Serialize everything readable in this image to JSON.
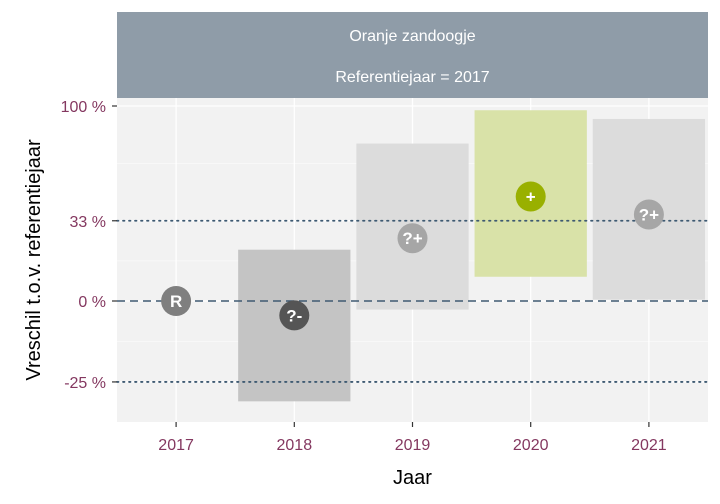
{
  "chart_data": {
    "type": "scatter",
    "title": "Oranje zandoogje",
    "subtitle": "Referentiejaar = 2017",
    "xlabel": "Jaar",
    "ylabel": "Vreschil t.o.v. referentiejaar",
    "categories": [
      "2017",
      "2018",
      "2019",
      "2020",
      "2021"
    ],
    "y_scale": "log-ratio",
    "y_ticks": [
      {
        "label": "-25 %",
        "value": -25
      },
      {
        "label": "0 %",
        "value": 0
      },
      {
        "label": "33 %",
        "value": 33
      },
      {
        "label": "100 %",
        "value": 100
      }
    ],
    "reference_lines": [
      {
        "value": 0,
        "style": "dashed",
        "color": "#3e5a72"
      },
      {
        "value": 33,
        "style": "dotted",
        "color": "#3e5a72"
      },
      {
        "value": -25,
        "style": "dotted",
        "color": "#3e5a72"
      }
    ],
    "points": [
      {
        "x": "2017",
        "estimate": 0,
        "lower": null,
        "upper": null,
        "label": "R",
        "color": "#7f7f7f",
        "band_color": null
      },
      {
        "x": "2018",
        "estimate": -5,
        "lower": -30,
        "upper": 20,
        "label": "?-",
        "color": "#555555",
        "band_color": "#c4c4c4"
      },
      {
        "x": "2019",
        "estimate": 25,
        "lower": -3,
        "upper": 75,
        "label": "?+",
        "color": "#a6a6a6",
        "band_color": "#dcdcdc"
      },
      {
        "x": "2020",
        "estimate": 45,
        "lower": 9,
        "upper": 97,
        "label": "+",
        "color": "#99b000",
        "band_color": "#d9e2a8"
      },
      {
        "x": "2021",
        "estimate": 36,
        "lower": 0.5,
        "upper": 91,
        "label": "?+",
        "color": "#a6a6a6",
        "band_color": "#dcdcdc"
      }
    ],
    "grid": true,
    "legend": "none"
  }
}
